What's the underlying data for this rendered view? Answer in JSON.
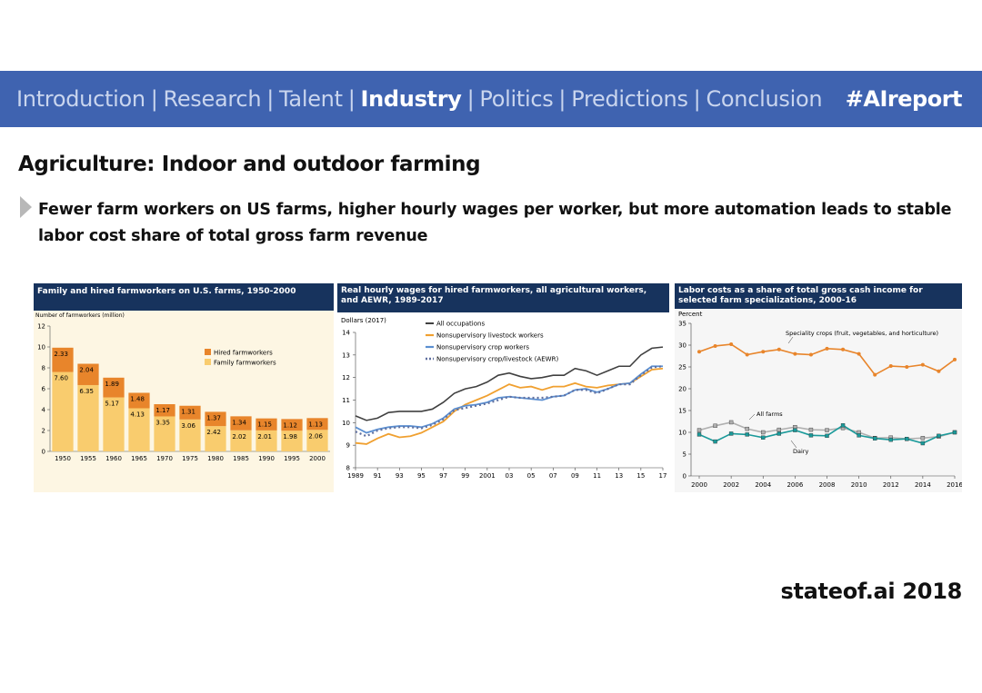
{
  "nav": {
    "items": [
      {
        "label": "Introduction",
        "active": false
      },
      {
        "label": "Research",
        "active": false
      },
      {
        "label": "Talent",
        "active": false
      },
      {
        "label": "Industry",
        "active": true
      },
      {
        "label": "Politics",
        "active": false
      },
      {
        "label": "Predictions",
        "active": false
      },
      {
        "label": "Conclusion",
        "active": false
      }
    ],
    "separator": "|",
    "hashtag": "#AIreport"
  },
  "slide": {
    "title": "Agriculture: Indoor and outdoor farming",
    "bullet": "Fewer farm workers on US farms, higher hourly wages per worker, but more automation leads to stable labor cost share of total gross farm revenue",
    "footer": "stateof.ai 2018"
  },
  "colors": {
    "nav_bg": "#3f63b0",
    "panel_header": "#17335d",
    "hired": "#e8852b",
    "family": "#f9cc6e",
    "all_occupations": "#404040",
    "livestock": "#f0a030",
    "crop": "#5b8fd1",
    "aewr": "#5f6f9f",
    "specialty": "#e8852b",
    "all_farms": "#b0b0b0",
    "dairy": "#1a9a9a"
  },
  "chart_data": [
    {
      "type": "bar",
      "title": "Family and hired farmworkers on U.S. farms, 1950-2000",
      "ylabel": "Number of farmworkers (million)",
      "ylim": [
        0,
        12
      ],
      "yticks": [
        "0",
        "2",
        "4",
        "6",
        "8",
        "10",
        "12"
      ],
      "categories": [
        "1950",
        "1955",
        "1960",
        "1965",
        "1970",
        "1975",
        "1980",
        "1985",
        "1990",
        "1995",
        "2000"
      ],
      "stacked": true,
      "series": [
        {
          "name": "Family farmworkers",
          "values": [
            7.6,
            6.35,
            5.17,
            4.13,
            3.35,
            3.06,
            2.42,
            2.02,
            2.01,
            1.98,
            2.06
          ],
          "labels": [
            "7.60",
            "6.35",
            "5.17",
            "4.13",
            "3.35",
            "3.06",
            "2.42",
            "2.02",
            "2.01",
            "1.98",
            "2.06"
          ]
        },
        {
          "name": "Hired farmworkers",
          "values": [
            2.33,
            2.04,
            1.89,
            1.48,
            1.17,
            1.31,
            1.37,
            1.34,
            1.15,
            1.12,
            1.13
          ],
          "labels": [
            "2.33",
            "2.04",
            "1.89",
            "1.48",
            "1.17",
            "1.31",
            "1.37",
            "1.34",
            "1.15",
            "1.12",
            "1.13"
          ]
        }
      ],
      "legend_placement": "right"
    },
    {
      "type": "line",
      "title": "Real hourly wages for hired farmworkers, all agricultural workers, and AEWR, 1989-2017",
      "ylabel": "Dollars (2017)",
      "ylim": [
        8,
        14
      ],
      "yticks": [
        "8",
        "9",
        "10",
        "11",
        "12",
        "13",
        "14"
      ],
      "x": [
        1989,
        1990,
        1991,
        1992,
        1993,
        1994,
        1995,
        1996,
        1997,
        1998,
        1999,
        2000,
        2001,
        2002,
        2003,
        2004,
        2005,
        2006,
        2007,
        2008,
        2009,
        2010,
        2011,
        2012,
        2013,
        2014,
        2015,
        2016,
        2017
      ],
      "xticks": [
        {
          "x": 1989,
          "label": "1989"
        },
        {
          "x": 1991,
          "label": "91"
        },
        {
          "x": 1993,
          "label": "93"
        },
        {
          "x": 1995,
          "label": "95"
        },
        {
          "x": 1997,
          "label": "97"
        },
        {
          "x": 1999,
          "label": "99"
        },
        {
          "x": 2001,
          "label": "2001"
        },
        {
          "x": 2003,
          "label": "03"
        },
        {
          "x": 2005,
          "label": "05"
        },
        {
          "x": 2007,
          "label": "07"
        },
        {
          "x": 2009,
          "label": "09"
        },
        {
          "x": 2011,
          "label": "11"
        },
        {
          "x": 2013,
          "label": "13"
        },
        {
          "x": 2015,
          "label": "15"
        },
        {
          "x": 2017,
          "label": "17"
        }
      ],
      "series": [
        {
          "name": "All occupations",
          "values": [
            10.3,
            10.1,
            10.2,
            10.45,
            10.5,
            10.5,
            10.5,
            10.6,
            10.9,
            11.3,
            11.5,
            11.6,
            11.8,
            12.1,
            12.2,
            12.05,
            11.95,
            12.0,
            12.1,
            12.1,
            12.4,
            12.3,
            12.1,
            12.3,
            12.5,
            12.5,
            13.0,
            13.3,
            13.35
          ]
        },
        {
          "name": "Nonsupervisory livestock workers",
          "values": [
            9.1,
            9.05,
            9.3,
            9.5,
            9.35,
            9.4,
            9.55,
            9.8,
            10.05,
            10.5,
            10.8,
            11.0,
            11.2,
            11.45,
            11.7,
            11.55,
            11.6,
            11.45,
            11.6,
            11.6,
            11.75,
            11.6,
            11.55,
            11.65,
            11.7,
            11.75,
            12.05,
            12.35,
            12.4
          ]
        },
        {
          "name": "Nonsupervisory crop workers",
          "values": [
            9.8,
            9.55,
            9.7,
            9.8,
            9.85,
            9.85,
            9.8,
            9.95,
            10.2,
            10.6,
            10.75,
            10.8,
            10.9,
            11.1,
            11.15,
            11.1,
            11.05,
            11.0,
            11.15,
            11.2,
            11.45,
            11.5,
            11.35,
            11.5,
            11.7,
            11.75,
            12.15,
            12.5,
            12.5
          ]
        },
        {
          "name": "Nonsupervisory crop/livestock (AEWR)",
          "values": [
            9.6,
            9.4,
            9.65,
            9.75,
            9.8,
            9.8,
            9.75,
            9.9,
            10.15,
            10.55,
            10.65,
            10.75,
            10.85,
            11.0,
            11.15,
            11.1,
            11.1,
            11.1,
            11.15,
            11.2,
            11.45,
            11.45,
            11.3,
            11.5,
            11.7,
            11.7,
            12.1,
            12.45,
            12.5
          ]
        }
      ],
      "legend_placement": "top"
    },
    {
      "type": "line",
      "title": "Labor costs as a share of total gross cash income for selected farm specializations, 2000-16",
      "ylabel": "Percent",
      "ylim": [
        0,
        35
      ],
      "yticks": [
        "0",
        "5",
        "10",
        "15",
        "20",
        "25",
        "30",
        "35"
      ],
      "x": [
        2000,
        2001,
        2002,
        2003,
        2004,
        2005,
        2006,
        2007,
        2008,
        2009,
        2010,
        2011,
        2012,
        2013,
        2014,
        2015,
        2016
      ],
      "xticks": [
        {
          "x": 2000,
          "label": "2000"
        },
        {
          "x": 2002,
          "label": "2002"
        },
        {
          "x": 2004,
          "label": "2004"
        },
        {
          "x": 2006,
          "label": "2006"
        },
        {
          "x": 2008,
          "label": "2008"
        },
        {
          "x": 2010,
          "label": "2010"
        },
        {
          "x": 2012,
          "label": "2012"
        },
        {
          "x": 2014,
          "label": "2014"
        },
        {
          "x": 2016,
          "label": "2016"
        }
      ],
      "series": [
        {
          "name": "Speciality crops (fruit, vegetables, and horticulture)",
          "values": [
            28.5,
            29.8,
            30.2,
            27.8,
            28.5,
            29.0,
            28.0,
            27.8,
            29.2,
            29.0,
            28.0,
            23.2,
            25.2,
            25.0,
            25.5,
            24.0,
            26.7
          ]
        },
        {
          "name": "All farms",
          "values": [
            10.5,
            11.5,
            12.3,
            10.8,
            10.0,
            10.6,
            11.2,
            10.6,
            10.5,
            11.0,
            10.0,
            8.7,
            8.8,
            8.5,
            8.7,
            9.0,
            10.0
          ]
        },
        {
          "name": "Dairy",
          "values": [
            9.5,
            7.9,
            9.7,
            9.5,
            8.8,
            9.7,
            10.5,
            9.3,
            9.2,
            11.6,
            9.3,
            8.6,
            8.3,
            8.5,
            7.5,
            9.2,
            10.0
          ]
        }
      ],
      "annotations": [
        "Speciality crops (fruit, vegetables, and horticulture)",
        "All farms",
        "Dairy"
      ]
    }
  ]
}
